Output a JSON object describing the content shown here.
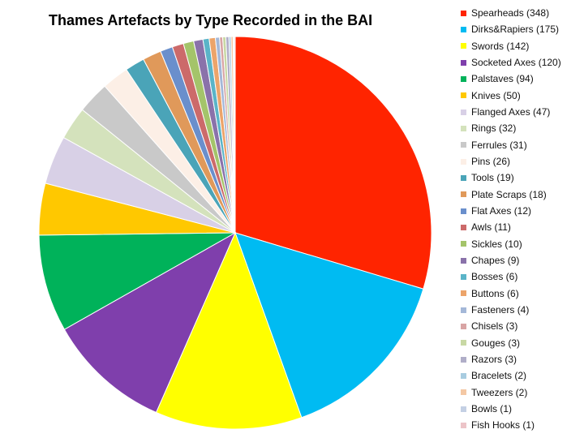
{
  "chart_data": {
    "type": "pie",
    "title": "Thames Artefacts by Type Recorded in the BAI",
    "legend_position": "right",
    "slices": [
      {
        "label": "Spearheads",
        "value": 348,
        "color": "#ff2400",
        "legend": "Spearheads (348)"
      },
      {
        "label": "Dirks&Rapiers",
        "value": 175,
        "color": "#00bbf2",
        "legend": "Dirks&Rapiers (175)"
      },
      {
        "label": "Swords",
        "value": 142,
        "color": "#ffff00",
        "legend": "Swords (142)"
      },
      {
        "label": "Socketed Axes",
        "value": 120,
        "color": "#7f3fac",
        "legend": "Socketed Axes (120)"
      },
      {
        "label": "Palstaves",
        "value": 94,
        "color": "#00b25a",
        "legend": "Palstaves (94)"
      },
      {
        "label": "Knives",
        "value": 50,
        "color": "#ffc800",
        "legend": "Knives (50)"
      },
      {
        "label": "Flanged Axes",
        "value": 47,
        "color": "#d8d0e6",
        "legend": "Flanged Axes (47)"
      },
      {
        "label": "Rings",
        "value": 32,
        "color": "#d4e2bc",
        "legend": "Rings (32)"
      },
      {
        "label": "Ferrules",
        "value": 31,
        "color": "#c9c9c9",
        "legend": "Ferrules (31)"
      },
      {
        "label": "Pins",
        "value": 26,
        "color": "#fcefe6",
        "legend": "Pins (26)"
      },
      {
        "label": "Tools",
        "value": 19,
        "color": "#4aa4b8",
        "legend": "Tools (19)"
      },
      {
        "label": "Plate Scraps",
        "value": 18,
        "color": "#e0995a",
        "legend": "Plate Scraps (18)"
      },
      {
        "label": "Flat Axes",
        "value": 12,
        "color": "#6a8fcc",
        "legend": "Flat Axes (12)"
      },
      {
        "label": "Awls",
        "value": 11,
        "color": "#cc6a6a",
        "legend": "Awls (11)"
      },
      {
        "label": "Sickles",
        "value": 10,
        "color": "#a4c46a",
        "legend": "Sickles (10)"
      },
      {
        "label": "Chapes",
        "value": 9,
        "color": "#8a72aa",
        "legend": "Chapes (9)"
      },
      {
        "label": "Bosses",
        "value": 6,
        "color": "#5ab4c8",
        "legend": "Bosses (6)"
      },
      {
        "label": "Buttons",
        "value": 6,
        "color": "#eca46a",
        "legend": "Buttons (6)"
      },
      {
        "label": "Fasteners",
        "value": 4,
        "color": "#a4b8d8",
        "legend": "Fasteners (4)"
      },
      {
        "label": "Chisels",
        "value": 3,
        "color": "#d8a4a4",
        "legend": "Chisels (3)"
      },
      {
        "label": "Gouges",
        "value": 3,
        "color": "#c8d8a4",
        "legend": "Gouges (3)"
      },
      {
        "label": "Razors",
        "value": 3,
        "color": "#b0aec8",
        "legend": "Razors (3)"
      },
      {
        "label": "Bracelets",
        "value": 2,
        "color": "#a8cce0",
        "legend": "Bracelets (2)"
      },
      {
        "label": "Tweezers",
        "value": 2,
        "color": "#f4c8a4",
        "legend": "Tweezers (2)"
      },
      {
        "label": "Bowls",
        "value": 1,
        "color": "#c4d0e4",
        "legend": "Bowls (1)"
      },
      {
        "label": "Fish Hooks",
        "value": 1,
        "color": "#ecc4c8",
        "legend": "Fish Hooks (1)"
      }
    ]
  }
}
